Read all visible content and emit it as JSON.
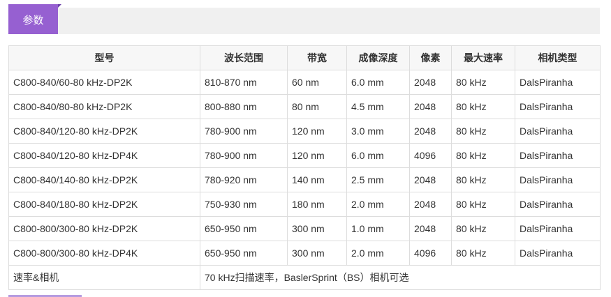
{
  "tab": {
    "label": "参数"
  },
  "table": {
    "headers": [
      "型号",
      "波长范围",
      "带宽",
      "成像深度",
      "像素",
      "最大速率",
      "相机类型"
    ],
    "rows": [
      [
        "C800-840/60-80 kHz-DP2K",
        "810-870 nm",
        "60 nm",
        "6.0 mm",
        "2048",
        "80 kHz",
        "DalsPiranha"
      ],
      [
        "C800-840/80-80 kHz-DP2K",
        "800-880 nm",
        "80 nm",
        "4.5 mm",
        "2048",
        "80 kHz",
        "DalsPiranha"
      ],
      [
        "C800-840/120-80 kHz-DP2K",
        "780-900 nm",
        "120 nm",
        "3.0 mm",
        "2048",
        "80 kHz",
        "DalsPiranha"
      ],
      [
        "C800-840/120-80 kHz-DP4K",
        "780-900 nm",
        "120 nm",
        "6.0 mm",
        "4096",
        "80 kHz",
        "DalsPiranha"
      ],
      [
        "C800-840/140-80 kHz-DP2K",
        "780-920 nm",
        "140 nm",
        "2.5 mm",
        "2048",
        "80 kHz",
        "DalsPiranha"
      ],
      [
        "C800-840/180-80 kHz-DP2K",
        "750-930 nm",
        "180 nm",
        "2.0 mm",
        "2048",
        "80 kHz",
        "DalsPiranha"
      ],
      [
        "C800-800/300-80 kHz-DP2K",
        "650-950 nm",
        "300 nm",
        "1.0 mm",
        "2048",
        "80 kHz",
        "DalsPiranha"
      ],
      [
        "C800-800/300-80 kHz-DP4K",
        "650-950 nm",
        "300 nm",
        "2.0 mm",
        "4096",
        "80 kHz",
        "DalsPiranha"
      ]
    ],
    "footer": {
      "label": "速率&相机",
      "value": "70 kHz扫描速率，BaslerSprint（BS）相机可选"
    }
  },
  "colors": {
    "accent": "#9660d1",
    "border": "#dddddd",
    "tabbar": "#f0f0f0"
  }
}
